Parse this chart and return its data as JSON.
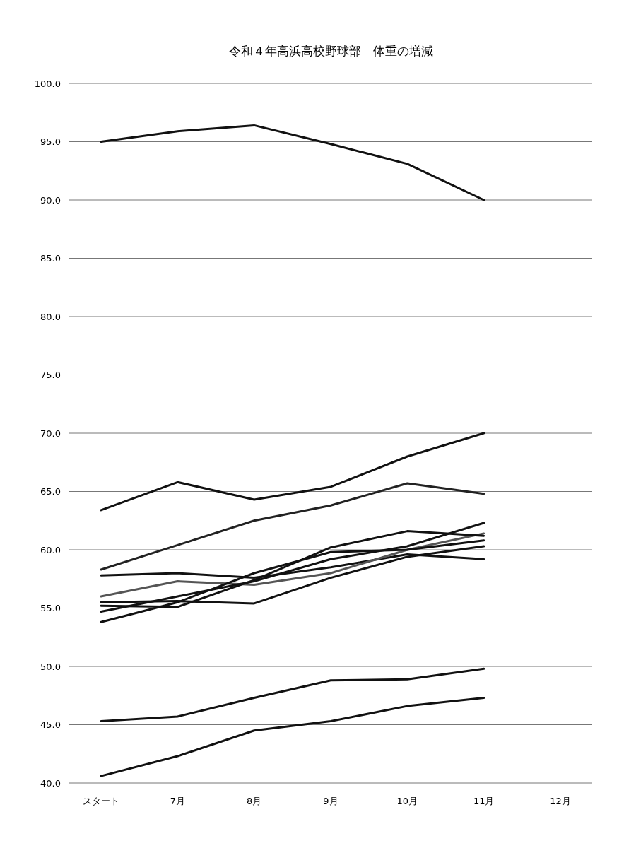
{
  "chart_data": {
    "type": "line",
    "title": "令和４年高浜高校野球部　体重の増減",
    "categories": [
      "スタート",
      "7月",
      "8月",
      "9月",
      "10月",
      "11月",
      "12月"
    ],
    "ylim": [
      40,
      100
    ],
    "yticks": [
      {
        "value": 40,
        "label": "40.0"
      },
      {
        "value": 45,
        "label": "45.0"
      },
      {
        "value": 50,
        "label": "50.0"
      },
      {
        "value": 55,
        "label": "55.0"
      },
      {
        "value": 60,
        "label": "60.0"
      },
      {
        "value": 65,
        "label": "65.0"
      },
      {
        "value": 70,
        "label": "70.0"
      },
      {
        "value": 75,
        "label": "75.0"
      },
      {
        "value": 80,
        "label": "80.0"
      },
      {
        "value": 85,
        "label": "85.0"
      },
      {
        "value": 90,
        "label": "90.0"
      },
      {
        "value": 95,
        "label": "95.0"
      },
      {
        "value": 100,
        "label": "100.0"
      }
    ],
    "grid": "y",
    "marker": "none",
    "line_style": "solid",
    "series": [
      {
        "color": "#111111",
        "values": [
          95.0,
          95.9,
          96.4,
          94.8,
          93.1,
          90.0,
          null
        ]
      },
      {
        "color": "#111111",
        "values": [
          63.4,
          65.8,
          64.3,
          65.4,
          68.0,
          70.0,
          null
        ]
      },
      {
        "color": "#222222",
        "values": [
          58.3,
          60.4,
          62.5,
          63.8,
          65.7,
          64.8,
          null
        ]
      },
      {
        "color": "#111111",
        "values": [
          57.8,
          58.0,
          57.6,
          58.5,
          59.6,
          59.2,
          null
        ]
      },
      {
        "color": "#555555",
        "values": [
          56.0,
          57.3,
          57.0,
          58.0,
          60.0,
          61.4,
          null
        ]
      },
      {
        "color": "#111111",
        "values": [
          55.5,
          55.6,
          55.4,
          57.6,
          59.4,
          60.3,
          null
        ]
      },
      {
        "color": "#111111",
        "values": [
          55.2,
          55.1,
          57.4,
          60.2,
          61.6,
          61.2,
          null
        ]
      },
      {
        "color": "#111111",
        "values": [
          54.7,
          56.0,
          57.3,
          59.2,
          60.3,
          62.3,
          null
        ]
      },
      {
        "color": "#111111",
        "values": [
          53.8,
          55.5,
          58.0,
          59.8,
          60.0,
          60.8,
          null
        ]
      },
      {
        "color": "#111111",
        "values": [
          45.3,
          45.7,
          47.3,
          48.8,
          48.9,
          49.8,
          null
        ]
      },
      {
        "color": "#111111",
        "values": [
          40.6,
          42.3,
          44.5,
          45.3,
          46.6,
          47.3,
          null
        ]
      }
    ]
  }
}
